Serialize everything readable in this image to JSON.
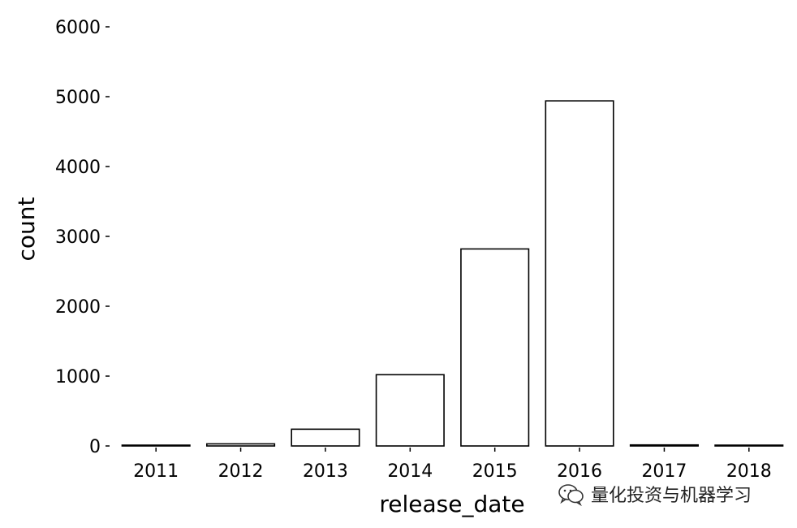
{
  "chart_data": {
    "type": "bar",
    "categories": [
      "2011",
      "2012",
      "2013",
      "2014",
      "2015",
      "2016",
      "2017",
      "2018"
    ],
    "values": [
      3,
      30,
      240,
      1020,
      2820,
      4940,
      15,
      10
    ],
    "xlabel": "release_date",
    "ylabel": "count",
    "ylim": [
      0,
      6000
    ],
    "yticks": [
      0,
      1000,
      2000,
      3000,
      4000,
      5000,
      6000
    ],
    "yticklabels": [
      "0",
      "1000",
      "2000",
      "3000",
      "4000",
      "5000",
      "6000"
    ],
    "grid": false,
    "bar_fill": "#ffffff",
    "bar_edge": "#000000"
  },
  "watermark": {
    "icon": "wechat-icon",
    "text": "量化投资与机器学习"
  }
}
